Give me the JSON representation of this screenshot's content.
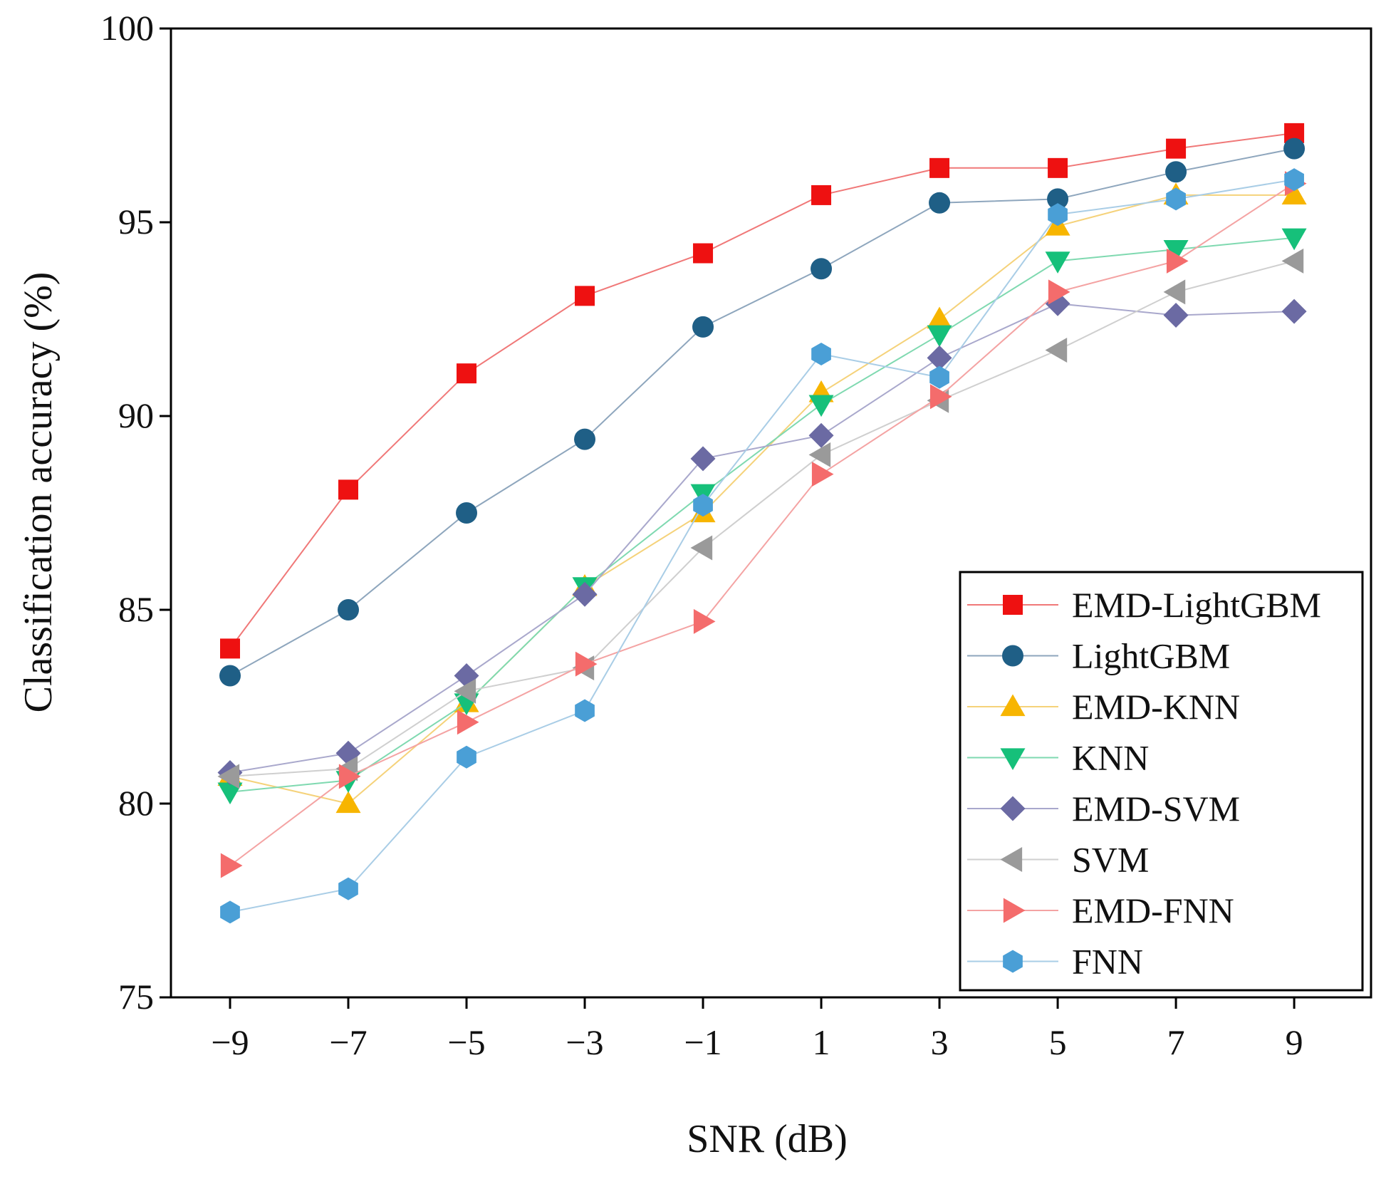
{
  "chart_data": {
    "type": "line",
    "title": "",
    "xlabel": "SNR (dB)",
    "ylabel": "Classification accuracy (%)",
    "x": [
      -9,
      -7,
      -5,
      -3,
      -1,
      1,
      3,
      5,
      7,
      9
    ],
    "x_tick_labels": [
      "−9",
      "−7",
      "−5",
      "−3",
      "−1",
      "1",
      "3",
      "5",
      "7",
      "9"
    ],
    "ylim": [
      75,
      100
    ],
    "y_ticks": [
      75,
      80,
      85,
      90,
      95,
      100
    ],
    "y_tick_labels": [
      "75",
      "80",
      "85",
      "90",
      "95",
      "100"
    ],
    "grid": false,
    "legend_position": "bottom-right",
    "series": [
      {
        "name": "EMD-LightGBM",
        "marker": "square",
        "marker_color": "#ee1111",
        "line_color": "#f07878",
        "values": [
          84.0,
          88.1,
          91.1,
          93.1,
          94.2,
          95.7,
          96.4,
          96.4,
          96.9,
          97.3
        ]
      },
      {
        "name": "LightGBM",
        "marker": "circle",
        "marker_color": "#1f5f86",
        "line_color": "#8ea6bd",
        "values": [
          83.3,
          85.0,
          87.5,
          89.4,
          92.3,
          93.8,
          95.5,
          95.6,
          96.3,
          96.9
        ]
      },
      {
        "name": "EMD-KNN",
        "marker": "triangle-up",
        "marker_color": "#f7b500",
        "line_color": "#f5d27a",
        "values": [
          80.7,
          80.0,
          82.6,
          85.6,
          87.5,
          90.6,
          92.5,
          94.9,
          95.7,
          95.7
        ]
      },
      {
        "name": "KNN",
        "marker": "triangle-down",
        "marker_color": "#16c07a",
        "line_color": "#7fd9b0",
        "values": [
          80.3,
          80.6,
          82.6,
          85.6,
          88.0,
          90.3,
          92.1,
          94.0,
          94.3,
          94.6
        ]
      },
      {
        "name": "EMD-SVM",
        "marker": "diamond",
        "marker_color": "#6b6aa3",
        "line_color": "#a9a8cc",
        "values": [
          80.8,
          81.3,
          83.3,
          85.4,
          88.9,
          89.5,
          91.5,
          92.9,
          92.6,
          92.7
        ]
      },
      {
        "name": "SVM",
        "marker": "triangle-left",
        "marker_color": "#9a9a9a",
        "line_color": "#cfcfcf",
        "values": [
          80.7,
          80.9,
          82.9,
          83.5,
          86.6,
          89.0,
          90.4,
          91.7,
          93.2,
          94.0
        ]
      },
      {
        "name": "EMD-FNN",
        "marker": "triangle-right",
        "marker_color": "#f46c6c",
        "line_color": "#f4a3a3",
        "values": [
          78.4,
          80.7,
          82.1,
          83.6,
          84.7,
          88.5,
          90.5,
          93.2,
          94.0,
          96.0
        ]
      },
      {
        "name": "FNN",
        "marker": "hexagon",
        "marker_color": "#4a9fd6",
        "line_color": "#a9cde6",
        "values": [
          77.2,
          77.8,
          81.2,
          82.4,
          87.7,
          91.6,
          91.0,
          95.2,
          95.6,
          96.1
        ]
      }
    ]
  }
}
